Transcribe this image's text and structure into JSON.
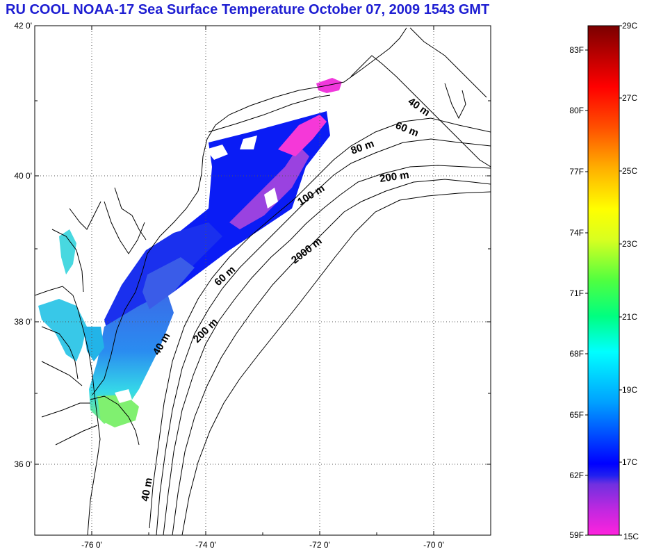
{
  "title": "RU COOL  NOAA-17 Sea Surface Temperature October 07, 2009 1543 GMT",
  "colors": {
    "title": "#1e1ed2",
    "land_outline": "#000000",
    "grid": "#555555"
  },
  "map": {
    "lat_labels": [
      "42 0'",
      "40 0'",
      "38 0'",
      "36 0'"
    ],
    "lon_labels": [
      "-76 0'",
      "-74 0'",
      "-72 0'",
      "-70 0'"
    ],
    "contour_labels": [
      "40 m",
      "60 m",
      "80 m",
      "200 m",
      "100 m",
      "2000 m",
      "60 m",
      "200 m",
      "40 m",
      "40 m"
    ]
  },
  "colorbar": {
    "fahrenheit_labels": [
      "83F",
      "80F",
      "77F",
      "74F",
      "71F",
      "68F",
      "65F",
      "62F",
      "59F"
    ],
    "celsius_labels": [
      "29C",
      "27C",
      "25C",
      "23C",
      "21C",
      "19C",
      "17C",
      "15C"
    ]
  }
}
